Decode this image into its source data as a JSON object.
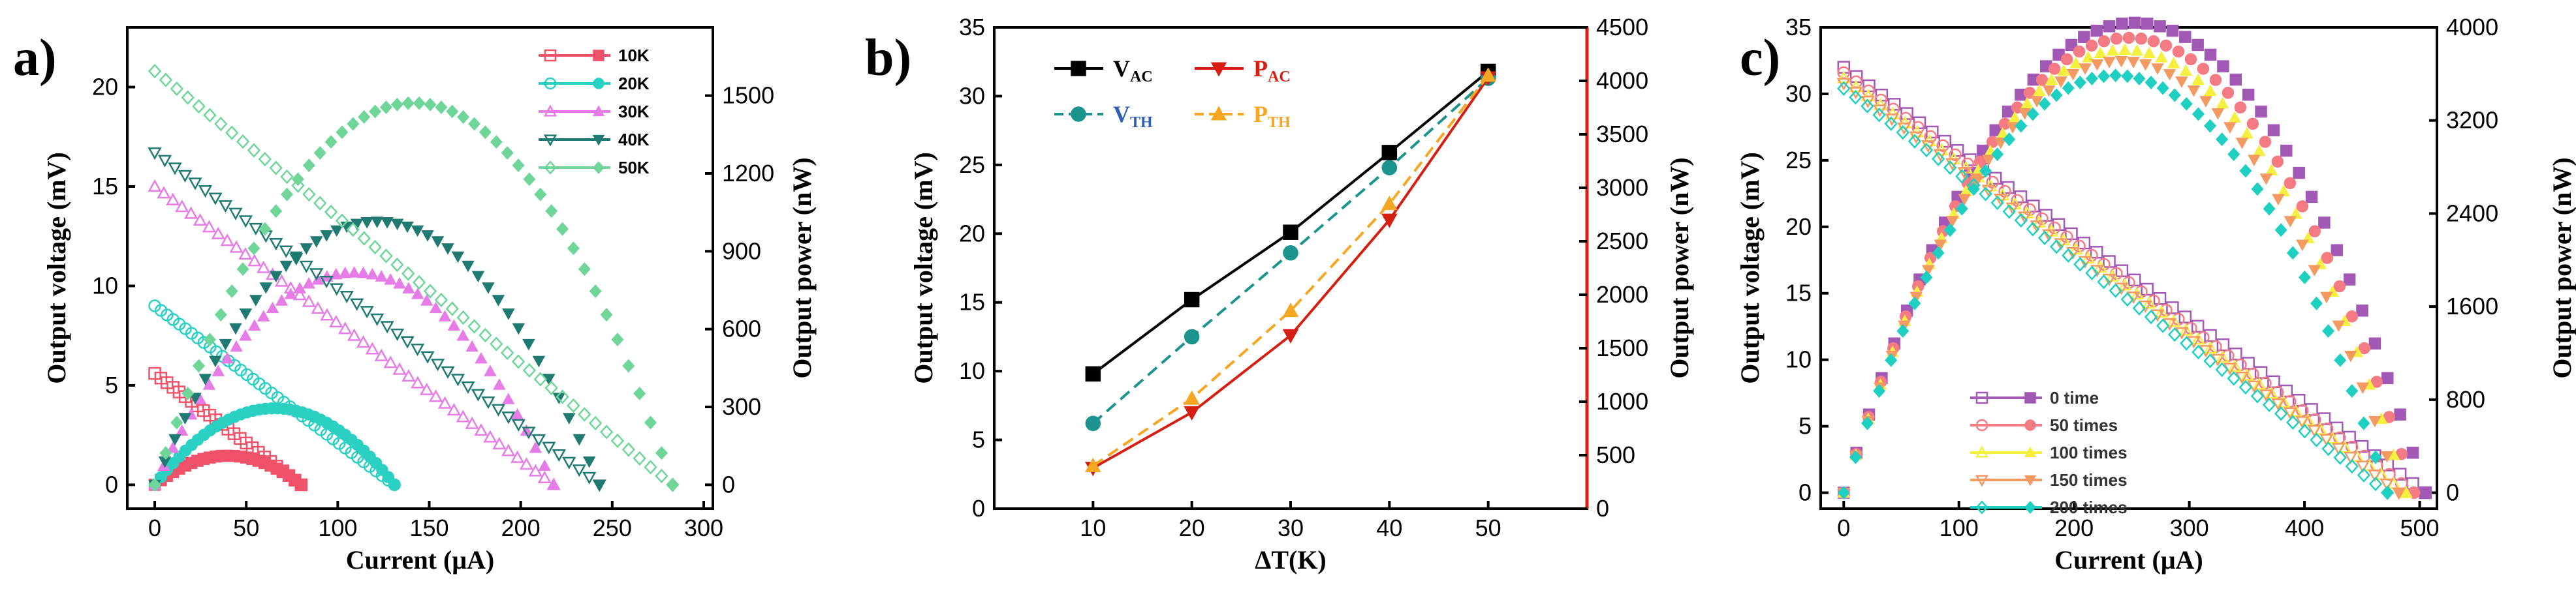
{
  "chart_data": [
    {
      "panel_label": "a)",
      "type": "scatter",
      "xlabel": "Current (μA)",
      "ylabel": "Output voltage (mV)",
      "y2label": "Output power (nW)",
      "xlim": [
        -15,
        305
      ],
      "ylim": [
        -1.2,
        23
      ],
      "y2lim": [
        -92,
        1763
      ],
      "xticks": [
        0,
        50,
        100,
        150,
        200,
        250,
        300
      ],
      "yticks": [
        0,
        5,
        10,
        15,
        20
      ],
      "y2ticks": [
        0,
        300,
        600,
        900,
        1200,
        1500
      ],
      "legend_position": "top-right",
      "series": [
        {
          "name": "10K",
          "color": "#f0526a",
          "marker": "square",
          "voc": 5.6,
          "isc": 80,
          "n": 25
        },
        {
          "name": "20K",
          "color": "#2ad1c3",
          "marker": "circle",
          "voc": 9.0,
          "isc": 131,
          "n": 40
        },
        {
          "name": "30K",
          "color": "#e67de6",
          "marker": "triangle-up",
          "voc": 15.0,
          "isc": 218,
          "n": 45
        },
        {
          "name": "40K",
          "color": "#1f7a72",
          "marker": "triangle-down",
          "voc": 16.7,
          "isc": 243,
          "n": 45
        },
        {
          "name": "50K",
          "color": "#6fd598",
          "marker": "diamond",
          "voc": 20.8,
          "isc": 283,
          "n": 48
        }
      ]
    },
    {
      "panel_label": "b)",
      "type": "line",
      "xlabel": "ΔT(K)",
      "ylabel": "Output voltage (mV)",
      "y2label": "Output power (nW)",
      "xlim": [
        0,
        60
      ],
      "ylim": [
        0,
        35
      ],
      "y2lim": [
        0,
        4500
      ],
      "xticks": [
        10,
        20,
        30,
        40,
        50
      ],
      "yticks": [
        0,
        5,
        10,
        15,
        20,
        25,
        30,
        35
      ],
      "y2ticks": [
        0,
        500,
        1000,
        1500,
        2000,
        2500,
        3000,
        3500,
        4000,
        4500
      ],
      "x": [
        10,
        20,
        30,
        40,
        50
      ],
      "series": [
        {
          "name": "V",
          "sub": "AC",
          "axis": "left",
          "color": "#000000",
          "name_color": "#000000",
          "marker": "square",
          "dash": false,
          "values": [
            9.8,
            15.2,
            20.1,
            25.9,
            31.8
          ]
        },
        {
          "name": "V",
          "sub": "TH",
          "axis": "left",
          "color": "#1a948c",
          "name_color": "#2f5fb8",
          "marker": "circle",
          "dash": true,
          "values": [
            6.2,
            12.5,
            18.6,
            24.8,
            31.3
          ]
        },
        {
          "name": "P",
          "sub": "AC",
          "axis": "right",
          "color": "#d41f12",
          "name_color": "#d41f12",
          "marker": "triangle-down",
          "dash": false,
          "values": [
            380,
            900,
            1620,
            2700,
            4030
          ]
        },
        {
          "name": "P",
          "sub": "TH",
          "axis": "right",
          "color": "#f5a623",
          "name_color": "#f5a623",
          "marker": "triangle-up",
          "dash": true,
          "values": [
            400,
            1030,
            1850,
            2850,
            4050
          ]
        }
      ]
    },
    {
      "panel_label": "c)",
      "type": "scatter",
      "xlabel": "Current (μA)",
      "ylabel": "Output voltage (mV)",
      "y2label": "Output power (nW)",
      "xlim": [
        -20,
        515
      ],
      "ylim": [
        -1.2,
        35
      ],
      "y2lim": [
        -137,
        4000
      ],
      "xticks": [
        0,
        100,
        200,
        300,
        400,
        500
      ],
      "yticks": [
        0,
        5,
        10,
        15,
        20,
        25,
        30,
        35
      ],
      "y2ticks": [
        0,
        800,
        1600,
        2400,
        3200,
        4000
      ],
      "legend_position": "bottom-left",
      "series": [
        {
          "name": "0 time",
          "color": "#a259b5",
          "marker": "square",
          "voc": 32.0,
          "isc": 505,
          "n": 47
        },
        {
          "name": "50 times",
          "color": "#f47a83",
          "marker": "circle",
          "voc": 31.6,
          "isc": 495,
          "n": 47
        },
        {
          "name": "100 times",
          "color": "#f5ef3f",
          "marker": "triangle-up",
          "voc": 31.2,
          "isc": 488,
          "n": 47
        },
        {
          "name": "150 times",
          "color": "#f39a62",
          "marker": "triangle-down",
          "voc": 30.8,
          "isc": 482,
          "n": 47
        },
        {
          "name": "200 times",
          "color": "#1fcfc1",
          "marker": "diamond",
          "voc": 30.4,
          "isc": 472,
          "n": 47
        }
      ]
    }
  ]
}
